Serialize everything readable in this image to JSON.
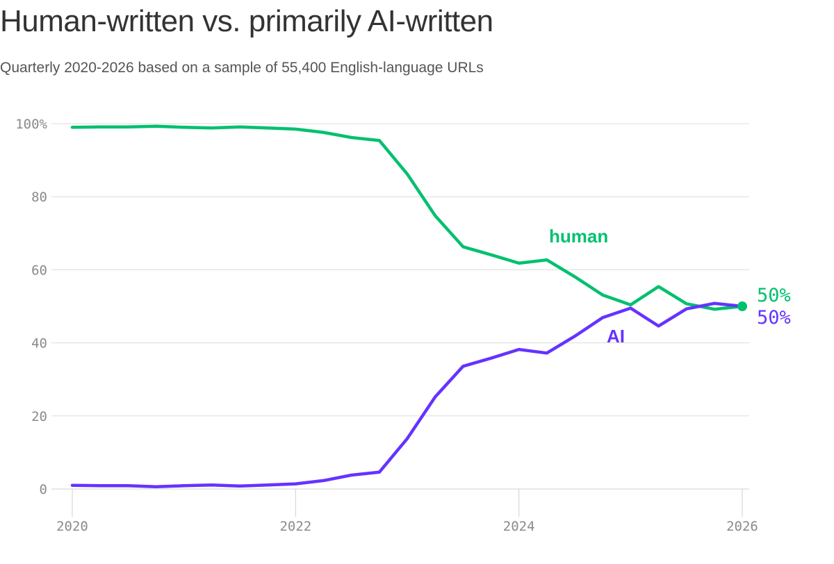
{
  "header": {
    "title": "Human-written vs. primarily AI-written",
    "subtitle": "Quarterly 2020-2026 based on a sample of 55,400 English-language URLs"
  },
  "chart_data": {
    "type": "line",
    "xlabel": "",
    "ylabel": "",
    "xlim": [
      2020,
      2026
    ],
    "ylim": [
      0,
      100
    ],
    "grid": true,
    "x_ticks": [
      "2020",
      "2022",
      "2024",
      "2026"
    ],
    "y_ticks": [
      "0",
      "20",
      "40",
      "60",
      "80",
      "100%"
    ],
    "x": [
      2020.0,
      2020.25,
      2020.5,
      2020.75,
      2021.0,
      2021.25,
      2021.5,
      2021.75,
      2022.0,
      2022.25,
      2022.5,
      2022.75,
      2023.0,
      2023.25,
      2023.5,
      2023.75,
      2024.0,
      2024.25,
      2024.5,
      2024.75,
      2025.0,
      2025.25,
      2025.5,
      2025.75,
      2026.0
    ],
    "series": [
      {
        "name": "human",
        "color": "#00c06f",
        "values": [
          99.0,
          99.1,
          99.1,
          99.3,
          99.0,
          98.8,
          99.1,
          98.8,
          98.5,
          97.6,
          96.2,
          95.4,
          86.2,
          74.8,
          66.3,
          64.1,
          61.8,
          62.7,
          58.1,
          53.1,
          50.4,
          55.4,
          50.7,
          49.2,
          50.0
        ],
        "end_label": "50%"
      },
      {
        "name": "AI",
        "color": "#6533ff",
        "values": [
          1.0,
          0.9,
          0.9,
          0.6,
          0.9,
          1.1,
          0.8,
          1.1,
          1.4,
          2.3,
          3.8,
          4.6,
          13.8,
          25.2,
          33.6,
          35.8,
          38.2,
          37.2,
          41.8,
          46.9,
          49.5,
          44.6,
          49.3,
          50.8,
          50.0
        ],
        "end_label": "50%"
      }
    ]
  }
}
